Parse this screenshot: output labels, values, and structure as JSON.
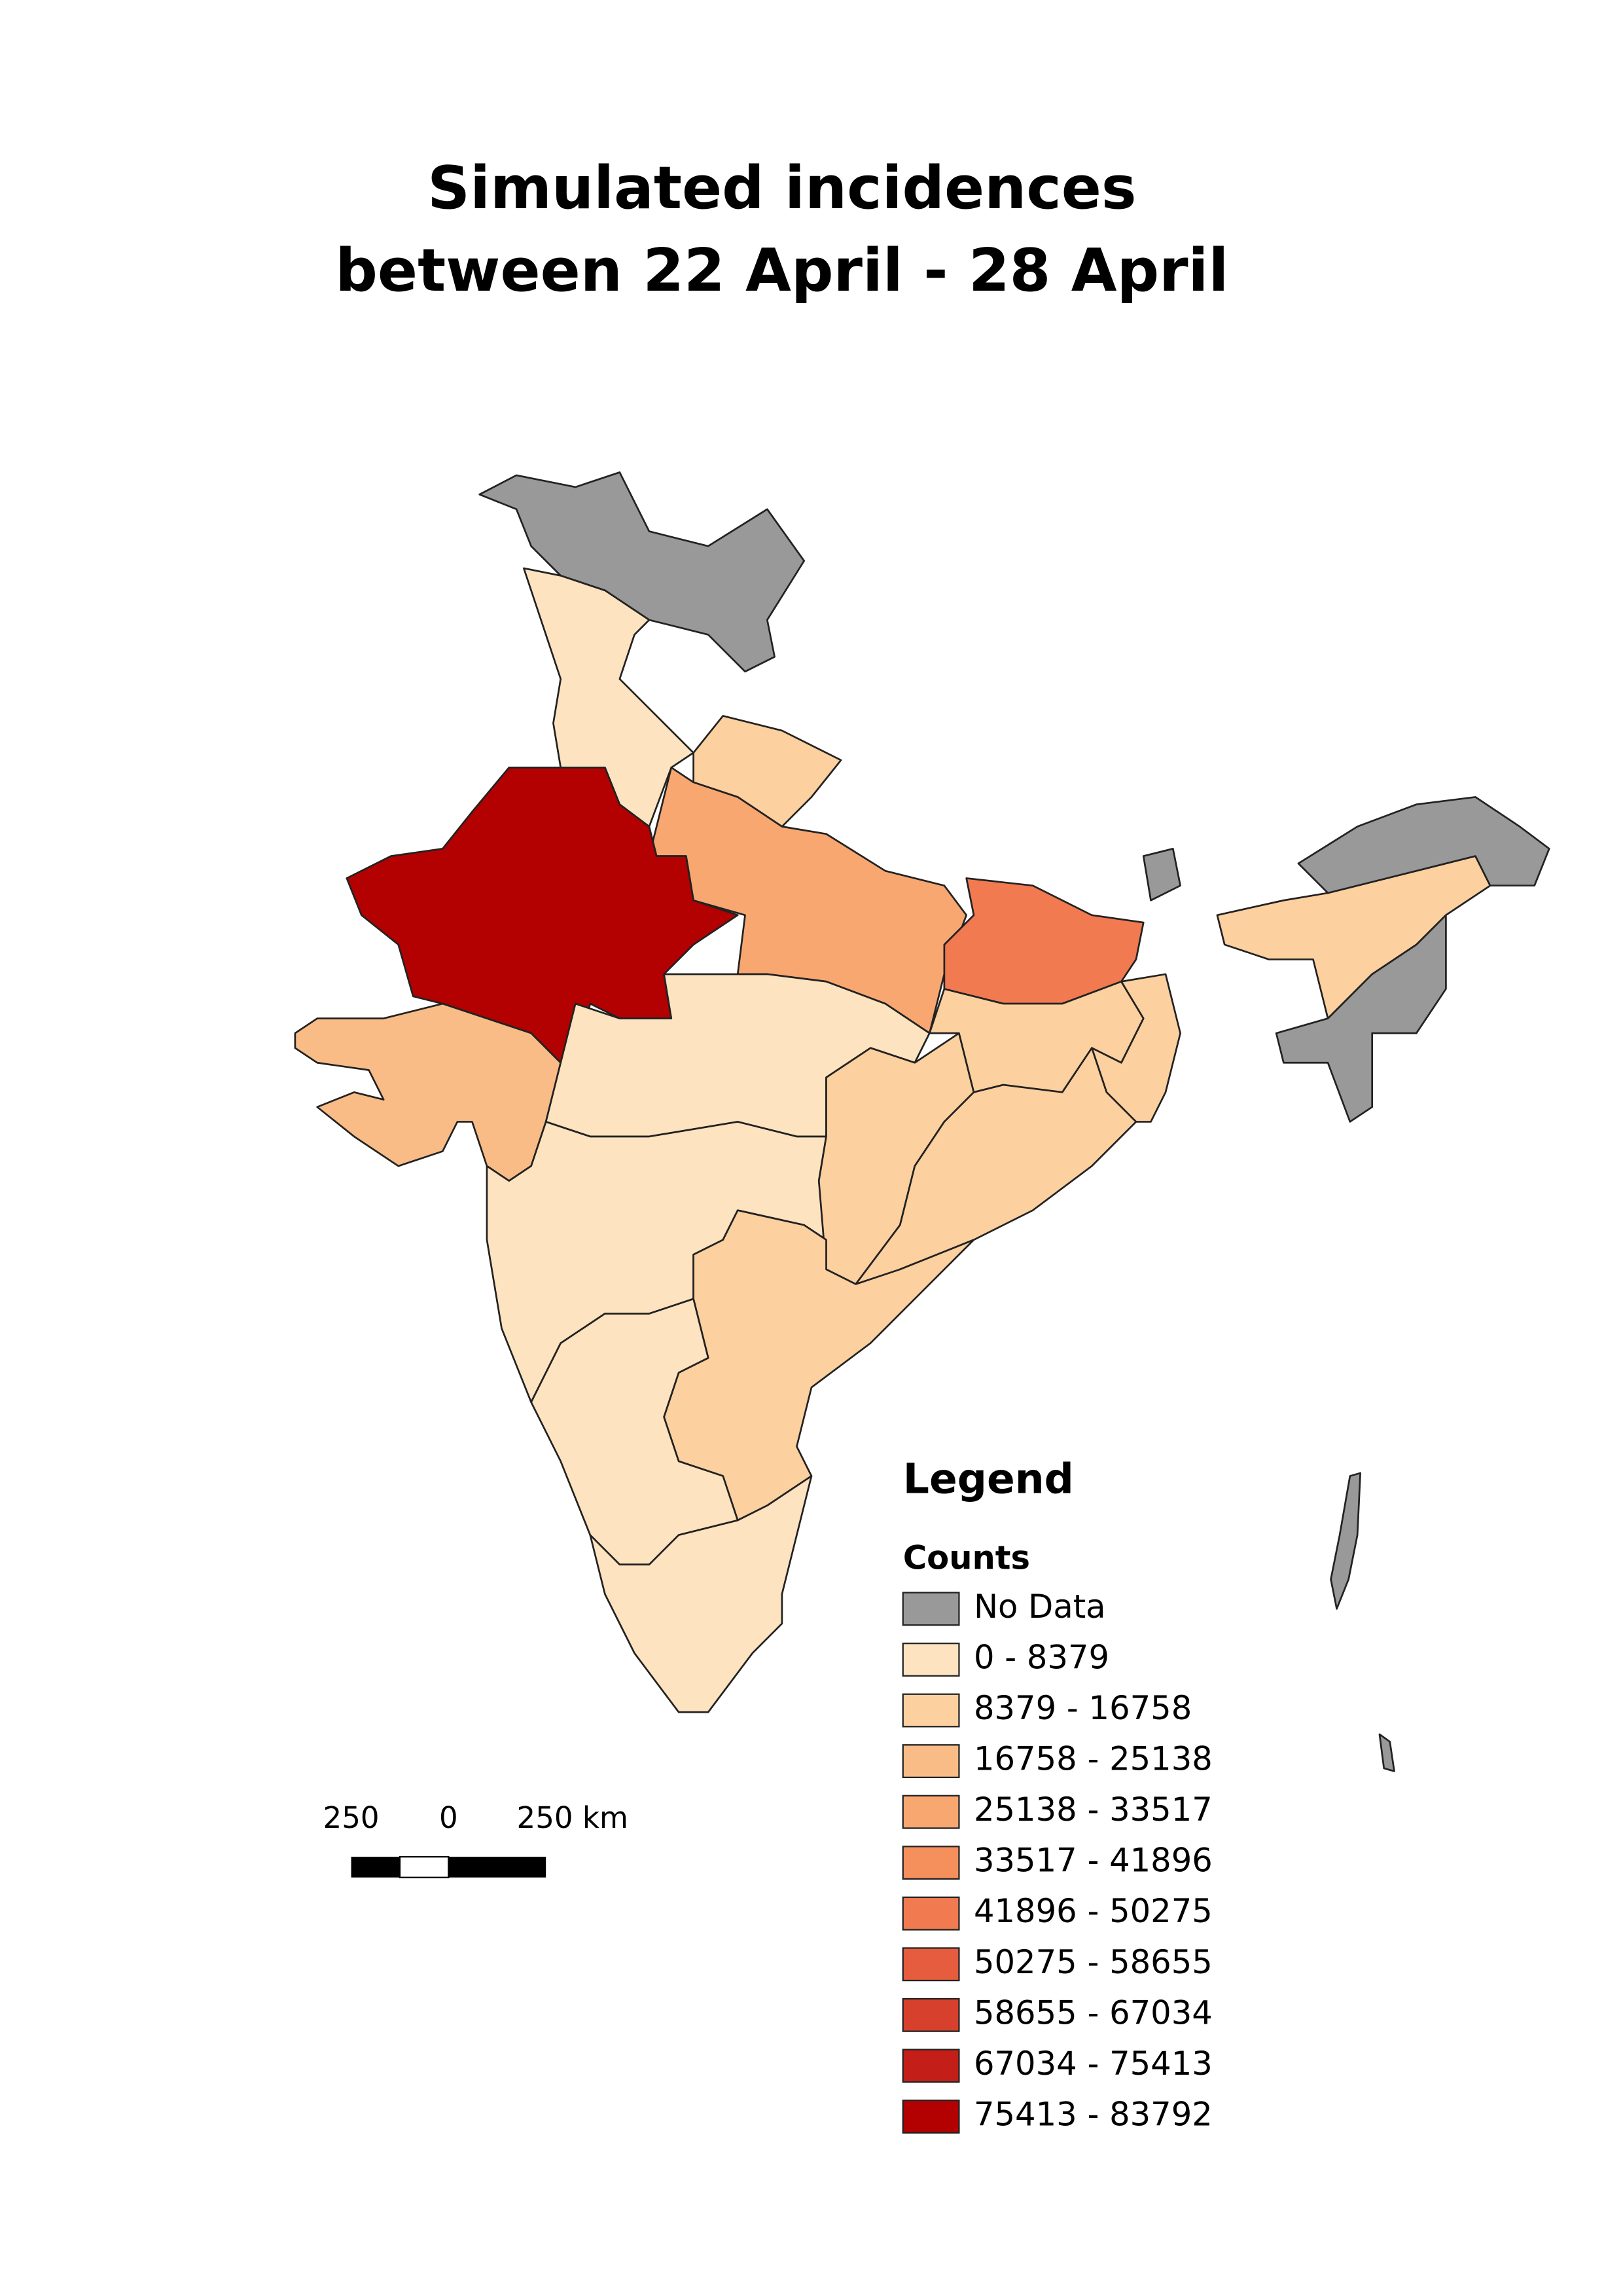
{
  "title": [
    "Simulated incidences",
    "between 22 April - 28 April"
  ],
  "legend": {
    "title": "Legend",
    "subtitle": "Counts",
    "entries": [
      {
        "label": "No Data",
        "color": "#999999"
      },
      {
        "label": "0 - 8379",
        "color": "#fde3bf"
      },
      {
        "label": "8379 - 16758",
        "color": "#fcd09f"
      },
      {
        "label": "16758 - 25138",
        "color": "#f9bc86"
      },
      {
        "label": "25138 - 33517",
        "color": "#f8a771"
      },
      {
        "label": "33517 - 41896",
        "color": "#f58f5b"
      },
      {
        "label": "41896 - 50275",
        "color": "#f17a50"
      },
      {
        "label": "50275 - 58655",
        "color": "#e55c3e"
      },
      {
        "label": "58655 - 67034",
        "color": "#d7402c"
      },
      {
        "label": "67034 - 75413",
        "color": "#c41e18"
      },
      {
        "label": "75413 - 83792",
        "color": "#b30000"
      }
    ]
  },
  "scale_bar": {
    "labels": [
      "250",
      "0",
      "250 km"
    ]
  }
}
